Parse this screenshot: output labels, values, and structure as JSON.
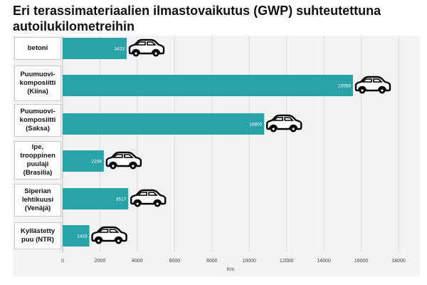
{
  "title": "Eri terassimateriaalien ilmastovaikutus (GWP) suhteutettuna autoilukilometreihin",
  "chart_data": {
    "type": "bar",
    "orientation": "horizontal",
    "categories": [
      "betoni",
      "Puumuovi-\nkomposiitti\n(Kiina)",
      "Puumuovi-\nkomposiitti\n(Saksa)",
      "Ipe,\ntrooppinen\npuulaji\n(Brasilia)",
      "Siperian\nlehtikuusi\n(Venäjä)",
      "Kyllästetty\npuu (NTR)"
    ],
    "values": [
      3433,
      15558,
      10800,
      2208,
      3517,
      1433
    ],
    "value_labels": [
      "3433",
      "15558",
      "10800",
      "2208",
      "3517",
      "1433"
    ],
    "xlabel": "Km",
    "xlim": [
      0,
      18000
    ],
    "xticks": [
      "0",
      "2000",
      "4000",
      "6000",
      "8000",
      "10000",
      "12000",
      "14000",
      "16000",
      "18000"
    ],
    "bar_color": "#2aa3a8",
    "marker_icon": "car-icon",
    "grid": true
  }
}
